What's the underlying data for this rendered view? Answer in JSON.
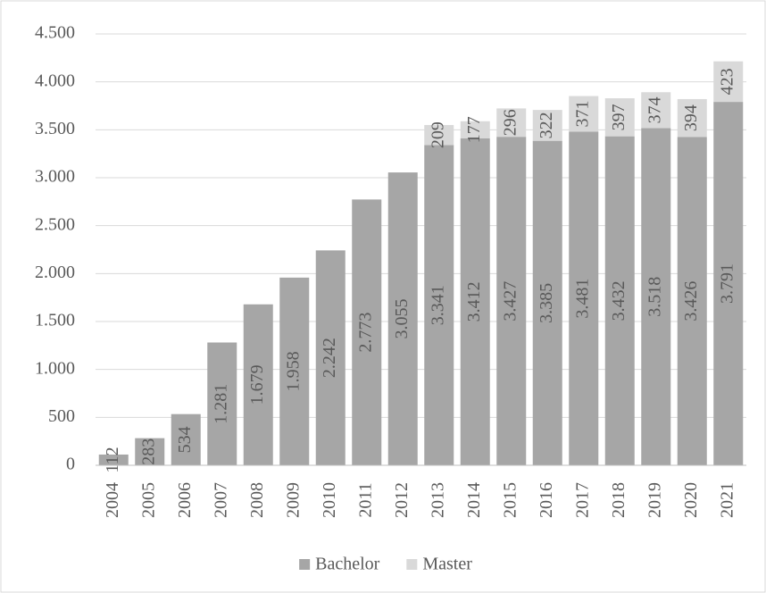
{
  "chart_data": {
    "type": "stacked_bar",
    "categories": [
      "2004",
      "2005",
      "2006",
      "2007",
      "2008",
      "2009",
      "2010",
      "2011",
      "2012",
      "2013",
      "2014",
      "2015",
      "2016",
      "2017",
      "2018",
      "2019",
      "2020",
      "2021"
    ],
    "series": [
      {
        "name": "Bachelor",
        "color": "#a6a6a6",
        "values": [
          112,
          283,
          534,
          1281,
          1679,
          1958,
          2242,
          2773,
          3055,
          3341,
          3412,
          3427,
          3385,
          3481,
          3432,
          3518,
          3426,
          3791
        ],
        "value_labels": [
          "112",
          "283",
          "534",
          "1.281",
          "1.679",
          "1.958",
          "2.242",
          "2.773",
          "3.055",
          "3.341",
          "3.412",
          "3.427",
          "3.385",
          "3.481",
          "3.432",
          "3.518",
          "3.426",
          "3.791"
        ]
      },
      {
        "name": "Master",
        "color": "#d9d9d9",
        "values": [
          null,
          null,
          null,
          null,
          null,
          null,
          null,
          null,
          null,
          209,
          177,
          296,
          322,
          371,
          397,
          374,
          394,
          423
        ]
      }
    ],
    "ylim": [
      0,
      4500
    ],
    "yticks": [
      0,
      500,
      {
        "value": 1000,
        "label": "1.000"
      },
      {
        "value": 1500,
        "label": "1.500"
      },
      {
        "value": 2000,
        "label": "2.000"
      },
      {
        "value": 2500,
        "label": "2.500"
      },
      {
        "value": 3000,
        "label": "3.000"
      },
      {
        "value": 3500,
        "label": "3.500"
      },
      {
        "value": 4000,
        "label": "4.000"
      },
      {
        "value": 4500,
        "label": "4.500"
      }
    ],
    "grid": true,
    "legend": "bottom"
  }
}
